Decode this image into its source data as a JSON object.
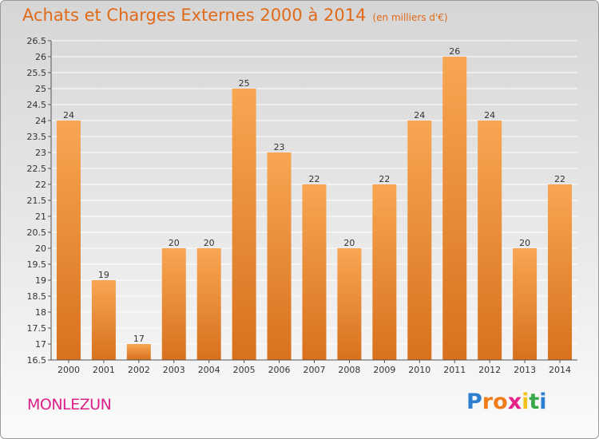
{
  "header": {
    "title": "Achats et Charges Externes 2000 à 2014",
    "subtitle": "(en milliers d'€)"
  },
  "footer": {
    "town": "MONLEZUN",
    "logo_text": "Proxiti"
  },
  "colors": {
    "bar_top": "#f8a652",
    "bar_bottom": "#d8711d",
    "title": "#e06a18",
    "town": "#dd1f8a"
  },
  "chart_data": {
    "type": "bar",
    "categories": [
      "2000",
      "2001",
      "2002",
      "2003",
      "2004",
      "2005",
      "2006",
      "2007",
      "2008",
      "2009",
      "2010",
      "2011",
      "2012",
      "2013",
      "2014"
    ],
    "values": [
      24,
      19,
      17,
      20,
      20,
      25,
      23,
      22,
      20,
      22,
      24,
      26,
      24,
      20,
      22
    ],
    "data_labels": [
      "24",
      "19",
      "17",
      "20",
      "20",
      "25",
      "23",
      "22",
      "20",
      "22",
      "24",
      "26",
      "24",
      "20",
      "22"
    ],
    "ylim": [
      16.5,
      26.5
    ],
    "yticks": [
      16.5,
      17,
      17.5,
      18,
      18.5,
      19,
      19.5,
      20,
      20.5,
      21,
      21.5,
      22,
      22.5,
      23,
      23.5,
      24,
      24.5,
      25,
      25.5,
      26,
      26.5
    ],
    "ytick_labels": [
      "16.5",
      "17",
      "17.5",
      "18",
      "18.5",
      "19",
      "19.5",
      "20",
      "20.5",
      "21",
      "21.5",
      "22",
      "22.5",
      "23",
      "23.5",
      "24",
      "24.5",
      "25",
      "25.5",
      "26",
      "26.5"
    ],
    "grid": "horizontal",
    "legend": "none"
  }
}
